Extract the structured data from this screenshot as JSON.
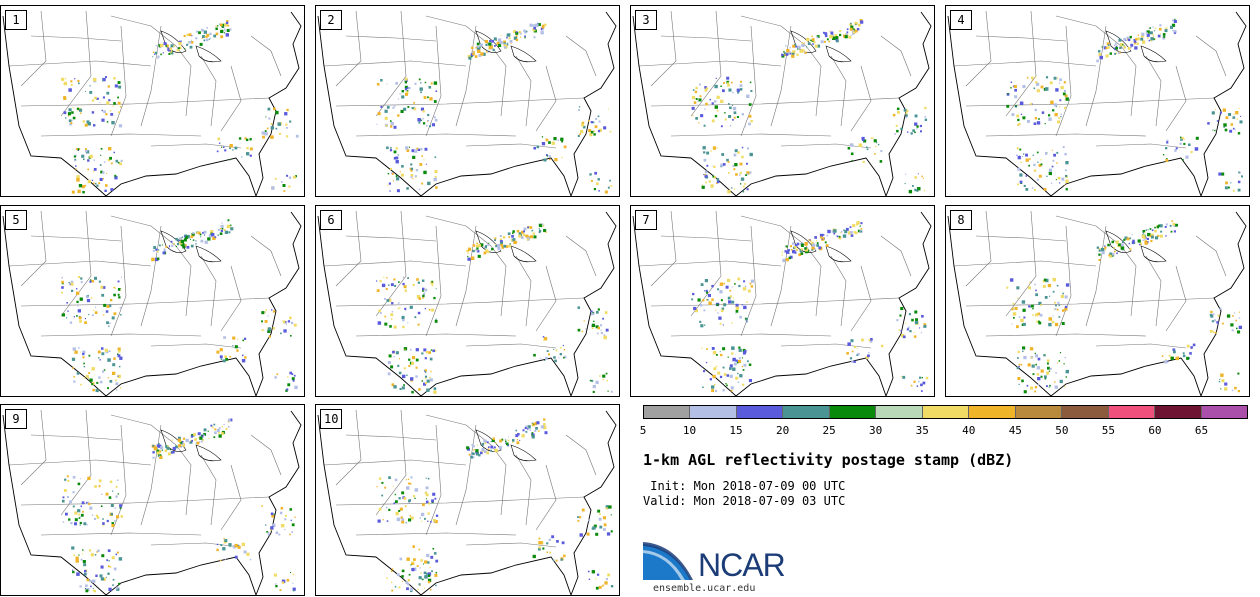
{
  "panels": [
    {
      "label": "1"
    },
    {
      "label": "2"
    },
    {
      "label": "3"
    },
    {
      "label": "4"
    },
    {
      "label": "5"
    },
    {
      "label": "6"
    },
    {
      "label": "7"
    },
    {
      "label": "8"
    },
    {
      "label": "9"
    },
    {
      "label": "10"
    }
  ],
  "colorbar": {
    "colors": [
      "#a0a0a0",
      "#b4bfe6",
      "#5a5adc",
      "#4a9494",
      "#0a8a0a",
      "#b8d8b8",
      "#f0dc64",
      "#f0b428",
      "#b98a3c",
      "#8c5a3c",
      "#f0507c",
      "#6e1432",
      "#aa50aa"
    ],
    "ticks": [
      "5",
      "10",
      "15",
      "20",
      "25",
      "30",
      "35",
      "40",
      "45",
      "50",
      "55",
      "60",
      "65"
    ]
  },
  "title": "1-km AGL reflectivity postage stamp (dBZ)",
  "init": " Init: Mon 2018-07-09 00 UTC",
  "valid": "Valid: Mon 2018-07-09 03 UTC",
  "logo": {
    "name": "NCAR",
    "url": "ensemble.ucar.edu"
  }
}
